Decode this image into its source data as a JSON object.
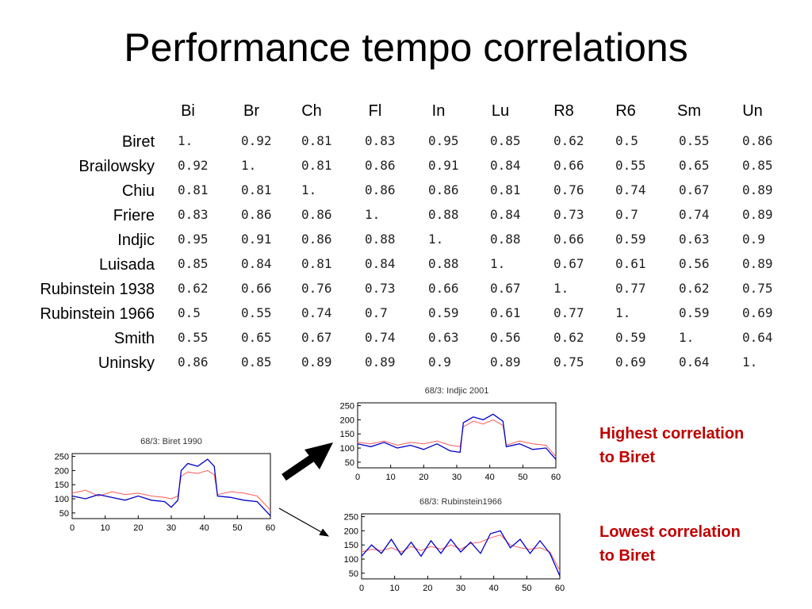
{
  "slide": {
    "title": "Performance tempo correlations",
    "note_high": [
      "Highest correlation",
      "to Biret"
    ],
    "note_low": [
      "Lowest correlation",
      "to Biret"
    ]
  },
  "matrix": {
    "col_labels": [
      "Bi",
      "Br",
      "Ch",
      "Fl",
      "In",
      "Lu",
      "R8",
      "R6",
      "Sm",
      "Un"
    ],
    "row_labels": [
      "Biret",
      "Brailowsky",
      "Chiu",
      "Friere",
      "Indjic",
      "Luisada",
      "Rubinstein 1938",
      "Rubinstein 1966",
      "Smith",
      "Uninsky"
    ],
    "values": [
      [
        "1.",
        "0.92",
        "0.81",
        "0.83",
        "0.95",
        "0.85",
        "0.62",
        "0.5",
        "0.55",
        "0.86"
      ],
      [
        "0.92",
        "1.",
        "0.81",
        "0.86",
        "0.91",
        "0.84",
        "0.66",
        "0.55",
        "0.65",
        "0.85"
      ],
      [
        "0.81",
        "0.81",
        "1.",
        "0.86",
        "0.86",
        "0.81",
        "0.76",
        "0.74",
        "0.67",
        "0.89"
      ],
      [
        "0.83",
        "0.86",
        "0.86",
        "1.",
        "0.88",
        "0.84",
        "0.73",
        "0.7",
        "0.74",
        "0.89"
      ],
      [
        "0.95",
        "0.91",
        "0.86",
        "0.88",
        "1.",
        "0.88",
        "0.66",
        "0.59",
        "0.63",
        "0.9"
      ],
      [
        "0.85",
        "0.84",
        "0.81",
        "0.84",
        "0.88",
        "1.",
        "0.67",
        "0.61",
        "0.56",
        "0.89"
      ],
      [
        "0.62",
        "0.66",
        "0.76",
        "0.73",
        "0.66",
        "0.67",
        "1.",
        "0.77",
        "0.62",
        "0.75"
      ],
      [
        "0.5",
        "0.55",
        "0.74",
        "0.7",
        "0.59",
        "0.61",
        "0.77",
        "1.",
        "0.59",
        "0.69"
      ],
      [
        "0.55",
        "0.65",
        "0.67",
        "0.74",
        "0.63",
        "0.56",
        "0.62",
        "0.59",
        "1.",
        "0.64"
      ],
      [
        "0.86",
        "0.85",
        "0.89",
        "0.89",
        "0.9",
        "0.89",
        "0.75",
        "0.69",
        "0.64",
        "1."
      ]
    ]
  },
  "colors": {
    "blue_series": "#0000cc",
    "red_series": "#ff5a5a",
    "note": "#c00000"
  },
  "chart_data": [
    {
      "type": "line",
      "title": "68/3: Biret 1990",
      "xlim": [
        0,
        60
      ],
      "ylim": [
        30,
        260
      ],
      "xticks": [
        "0",
        "10",
        "20",
        "30",
        "40",
        "50",
        "60"
      ],
      "yticks": [
        "50",
        "100",
        "150",
        "200",
        "250"
      ],
      "series": [
        {
          "values": [
            [
              0,
              110
            ],
            [
              4,
              100
            ],
            [
              8,
              115
            ],
            [
              12,
              105
            ],
            [
              16,
              95
            ],
            [
              20,
              110
            ],
            [
              24,
              95
            ],
            [
              28,
              90
            ],
            [
              30,
              70
            ],
            [
              32,
              95
            ],
            [
              33,
              200
            ],
            [
              35,
              225
            ],
            [
              38,
              215
            ],
            [
              41,
              240
            ],
            [
              43,
              215
            ],
            [
              44,
              110
            ],
            [
              48,
              105
            ],
            [
              52,
              95
            ],
            [
              56,
              90
            ],
            [
              60,
              40
            ]
          ]
        },
        {
          "values": [
            [
              0,
              120
            ],
            [
              4,
              130
            ],
            [
              8,
              110
            ],
            [
              12,
              125
            ],
            [
              16,
              115
            ],
            [
              20,
              120
            ],
            [
              24,
              110
            ],
            [
              28,
              105
            ],
            [
              30,
              100
            ],
            [
              32,
              110
            ],
            [
              33,
              180
            ],
            [
              35,
              195
            ],
            [
              38,
              190
            ],
            [
              41,
              200
            ],
            [
              43,
              185
            ],
            [
              44,
              115
            ],
            [
              48,
              125
            ],
            [
              52,
              120
            ],
            [
              56,
              110
            ],
            [
              60,
              60
            ]
          ]
        }
      ]
    },
    {
      "type": "line",
      "title": "68/3: Indjic 2001",
      "xlim": [
        0,
        60
      ],
      "ylim": [
        30,
        260
      ],
      "xticks": [
        "0",
        "10",
        "20",
        "30",
        "40",
        "50",
        "60"
      ],
      "yticks": [
        "50",
        "100",
        "150",
        "200",
        "250"
      ],
      "series": [
        {
          "values": [
            [
              0,
              115
            ],
            [
              4,
              105
            ],
            [
              8,
              120
            ],
            [
              12,
              100
            ],
            [
              16,
              110
            ],
            [
              20,
              95
            ],
            [
              24,
              115
            ],
            [
              28,
              90
            ],
            [
              31,
              85
            ],
            [
              32,
              190
            ],
            [
              35,
              210
            ],
            [
              38,
              200
            ],
            [
              41,
              220
            ],
            [
              44,
              195
            ],
            [
              45,
              105
            ],
            [
              49,
              115
            ],
            [
              53,
              95
            ],
            [
              57,
              100
            ],
            [
              60,
              60
            ]
          ]
        },
        {
          "values": [
            [
              0,
              120
            ],
            [
              4,
              115
            ],
            [
              8,
              125
            ],
            [
              12,
              110
            ],
            [
              16,
              120
            ],
            [
              20,
              115
            ],
            [
              24,
              125
            ],
            [
              28,
              110
            ],
            [
              31,
              105
            ],
            [
              32,
              175
            ],
            [
              35,
              195
            ],
            [
              38,
              185
            ],
            [
              41,
              200
            ],
            [
              44,
              180
            ],
            [
              45,
              110
            ],
            [
              49,
              125
            ],
            [
              53,
              115
            ],
            [
              57,
              110
            ],
            [
              60,
              70
            ]
          ]
        }
      ]
    },
    {
      "type": "line",
      "title": "68/3: Rubinstein1966",
      "xlim": [
        0,
        60
      ],
      "ylim": [
        30,
        260
      ],
      "xticks": [
        "0",
        "10",
        "20",
        "30",
        "40",
        "50",
        "60"
      ],
      "yticks": [
        "50",
        "100",
        "150",
        "200",
        "250"
      ],
      "series": [
        {
          "values": [
            [
              0,
              110
            ],
            [
              3,
              150
            ],
            [
              6,
              120
            ],
            [
              9,
              170
            ],
            [
              12,
              115
            ],
            [
              15,
              160
            ],
            [
              18,
              110
            ],
            [
              21,
              165
            ],
            [
              24,
              120
            ],
            [
              27,
              170
            ],
            [
              30,
              125
            ],
            [
              33,
              160
            ],
            [
              36,
              120
            ],
            [
              39,
              190
            ],
            [
              42,
              200
            ],
            [
              45,
              140
            ],
            [
              48,
              170
            ],
            [
              51,
              120
            ],
            [
              54,
              165
            ],
            [
              57,
              120
            ],
            [
              60,
              40
            ]
          ]
        },
        {
          "values": [
            [
              0,
              125
            ],
            [
              3,
              135
            ],
            [
              6,
              130
            ],
            [
              9,
              140
            ],
            [
              12,
              125
            ],
            [
              15,
              145
            ],
            [
              18,
              130
            ],
            [
              21,
              145
            ],
            [
              24,
              135
            ],
            [
              27,
              150
            ],
            [
              30,
              135
            ],
            [
              33,
              155
            ],
            [
              36,
              160
            ],
            [
              39,
              175
            ],
            [
              42,
              185
            ],
            [
              45,
              150
            ],
            [
              48,
              140
            ],
            [
              51,
              135
            ],
            [
              54,
              140
            ],
            [
              57,
              125
            ],
            [
              60,
              60
            ]
          ]
        }
      ]
    }
  ]
}
